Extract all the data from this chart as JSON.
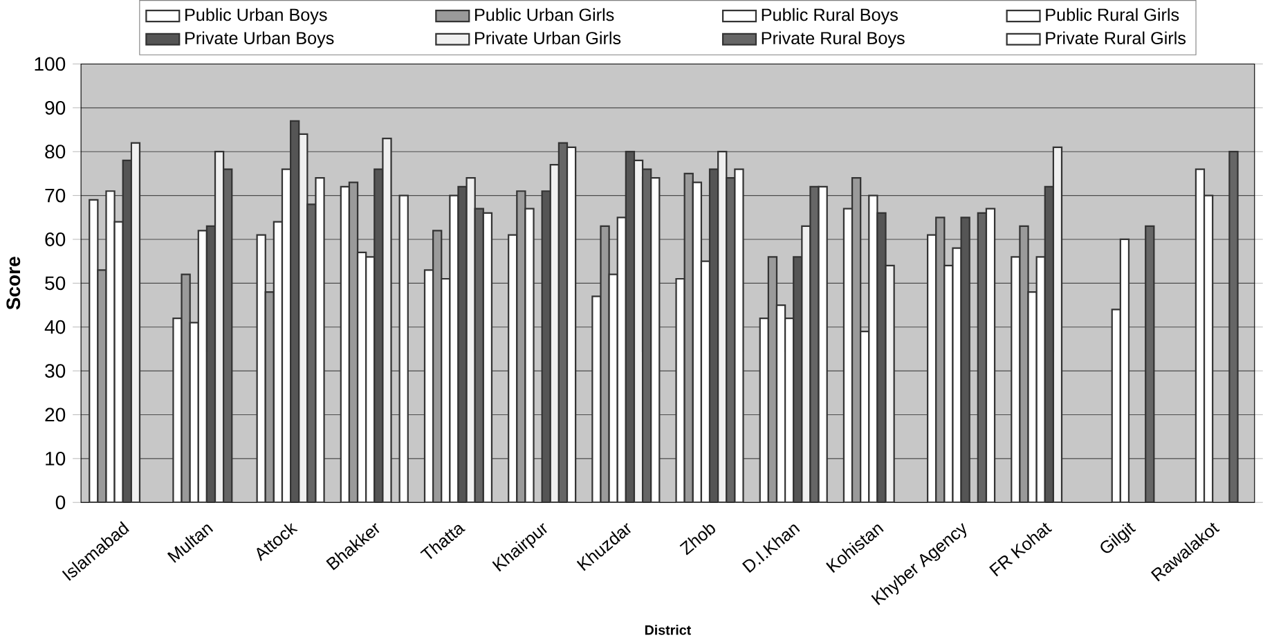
{
  "chart_data": {
    "type": "bar",
    "xlabel": "District",
    "ylabel": "Score",
    "categories": [
      "Islamabad",
      "Multan",
      "Attock",
      "Bhakker",
      "Thatta",
      "Khairpur",
      "Khuzdar",
      "Zhob",
      "D.I.Khan",
      "Kohistan",
      "Khyber Agency",
      "FR Kohat",
      "Gilgit",
      "Rawalakot"
    ],
    "series": [
      {
        "name": "Public Urban Boys",
        "color": "#ffffff",
        "values": [
          69,
          42,
          61,
          72,
          53,
          61,
          47,
          51,
          42,
          67,
          61,
          56,
          null,
          null
        ]
      },
      {
        "name": "Public Urban Girls",
        "color": "#9a9a9a",
        "values": [
          53,
          52,
          48,
          73,
          62,
          71,
          63,
          75,
          56,
          74,
          65,
          63,
          null,
          null
        ]
      },
      {
        "name": "Public Rural Boys",
        "color": "#ffffff",
        "values": [
          71,
          41,
          64,
          57,
          51,
          67,
          52,
          73,
          45,
          39,
          54,
          48,
          44,
          76
        ]
      },
      {
        "name": "Public Rural Girls",
        "color": "#ffffff",
        "values": [
          64,
          62,
          76,
          56,
          70,
          null,
          65,
          55,
          42,
          70,
          58,
          56,
          60,
          70
        ]
      },
      {
        "name": "Private Urban Boys",
        "color": "#555555",
        "values": [
          78,
          63,
          87,
          76,
          72,
          71,
          80,
          76,
          56,
          66,
          65,
          72,
          null,
          null
        ]
      },
      {
        "name": "Private Urban Girls",
        "color": "#f0f0f0",
        "values": [
          82,
          80,
          84,
          83,
          74,
          77,
          78,
          80,
          63,
          54,
          null,
          81,
          null,
          null
        ]
      },
      {
        "name": "Private Rural Boys",
        "color": "#666666",
        "values": [
          null,
          76,
          68,
          null,
          67,
          82,
          76,
          74,
          72,
          null,
          66,
          null,
          63,
          80
        ]
      },
      {
        "name": "Private Rural Girls",
        "color": "#ffffff",
        "values": [
          null,
          null,
          74,
          70,
          66,
          81,
          74,
          76,
          72,
          null,
          67,
          null,
          null,
          null
        ]
      }
    ],
    "ylim": [
      0,
      100
    ],
    "yticks": [
      0,
      10,
      20,
      30,
      40,
      50,
      60,
      70,
      80,
      90,
      100
    ],
    "grid": "y",
    "legend": "top"
  }
}
